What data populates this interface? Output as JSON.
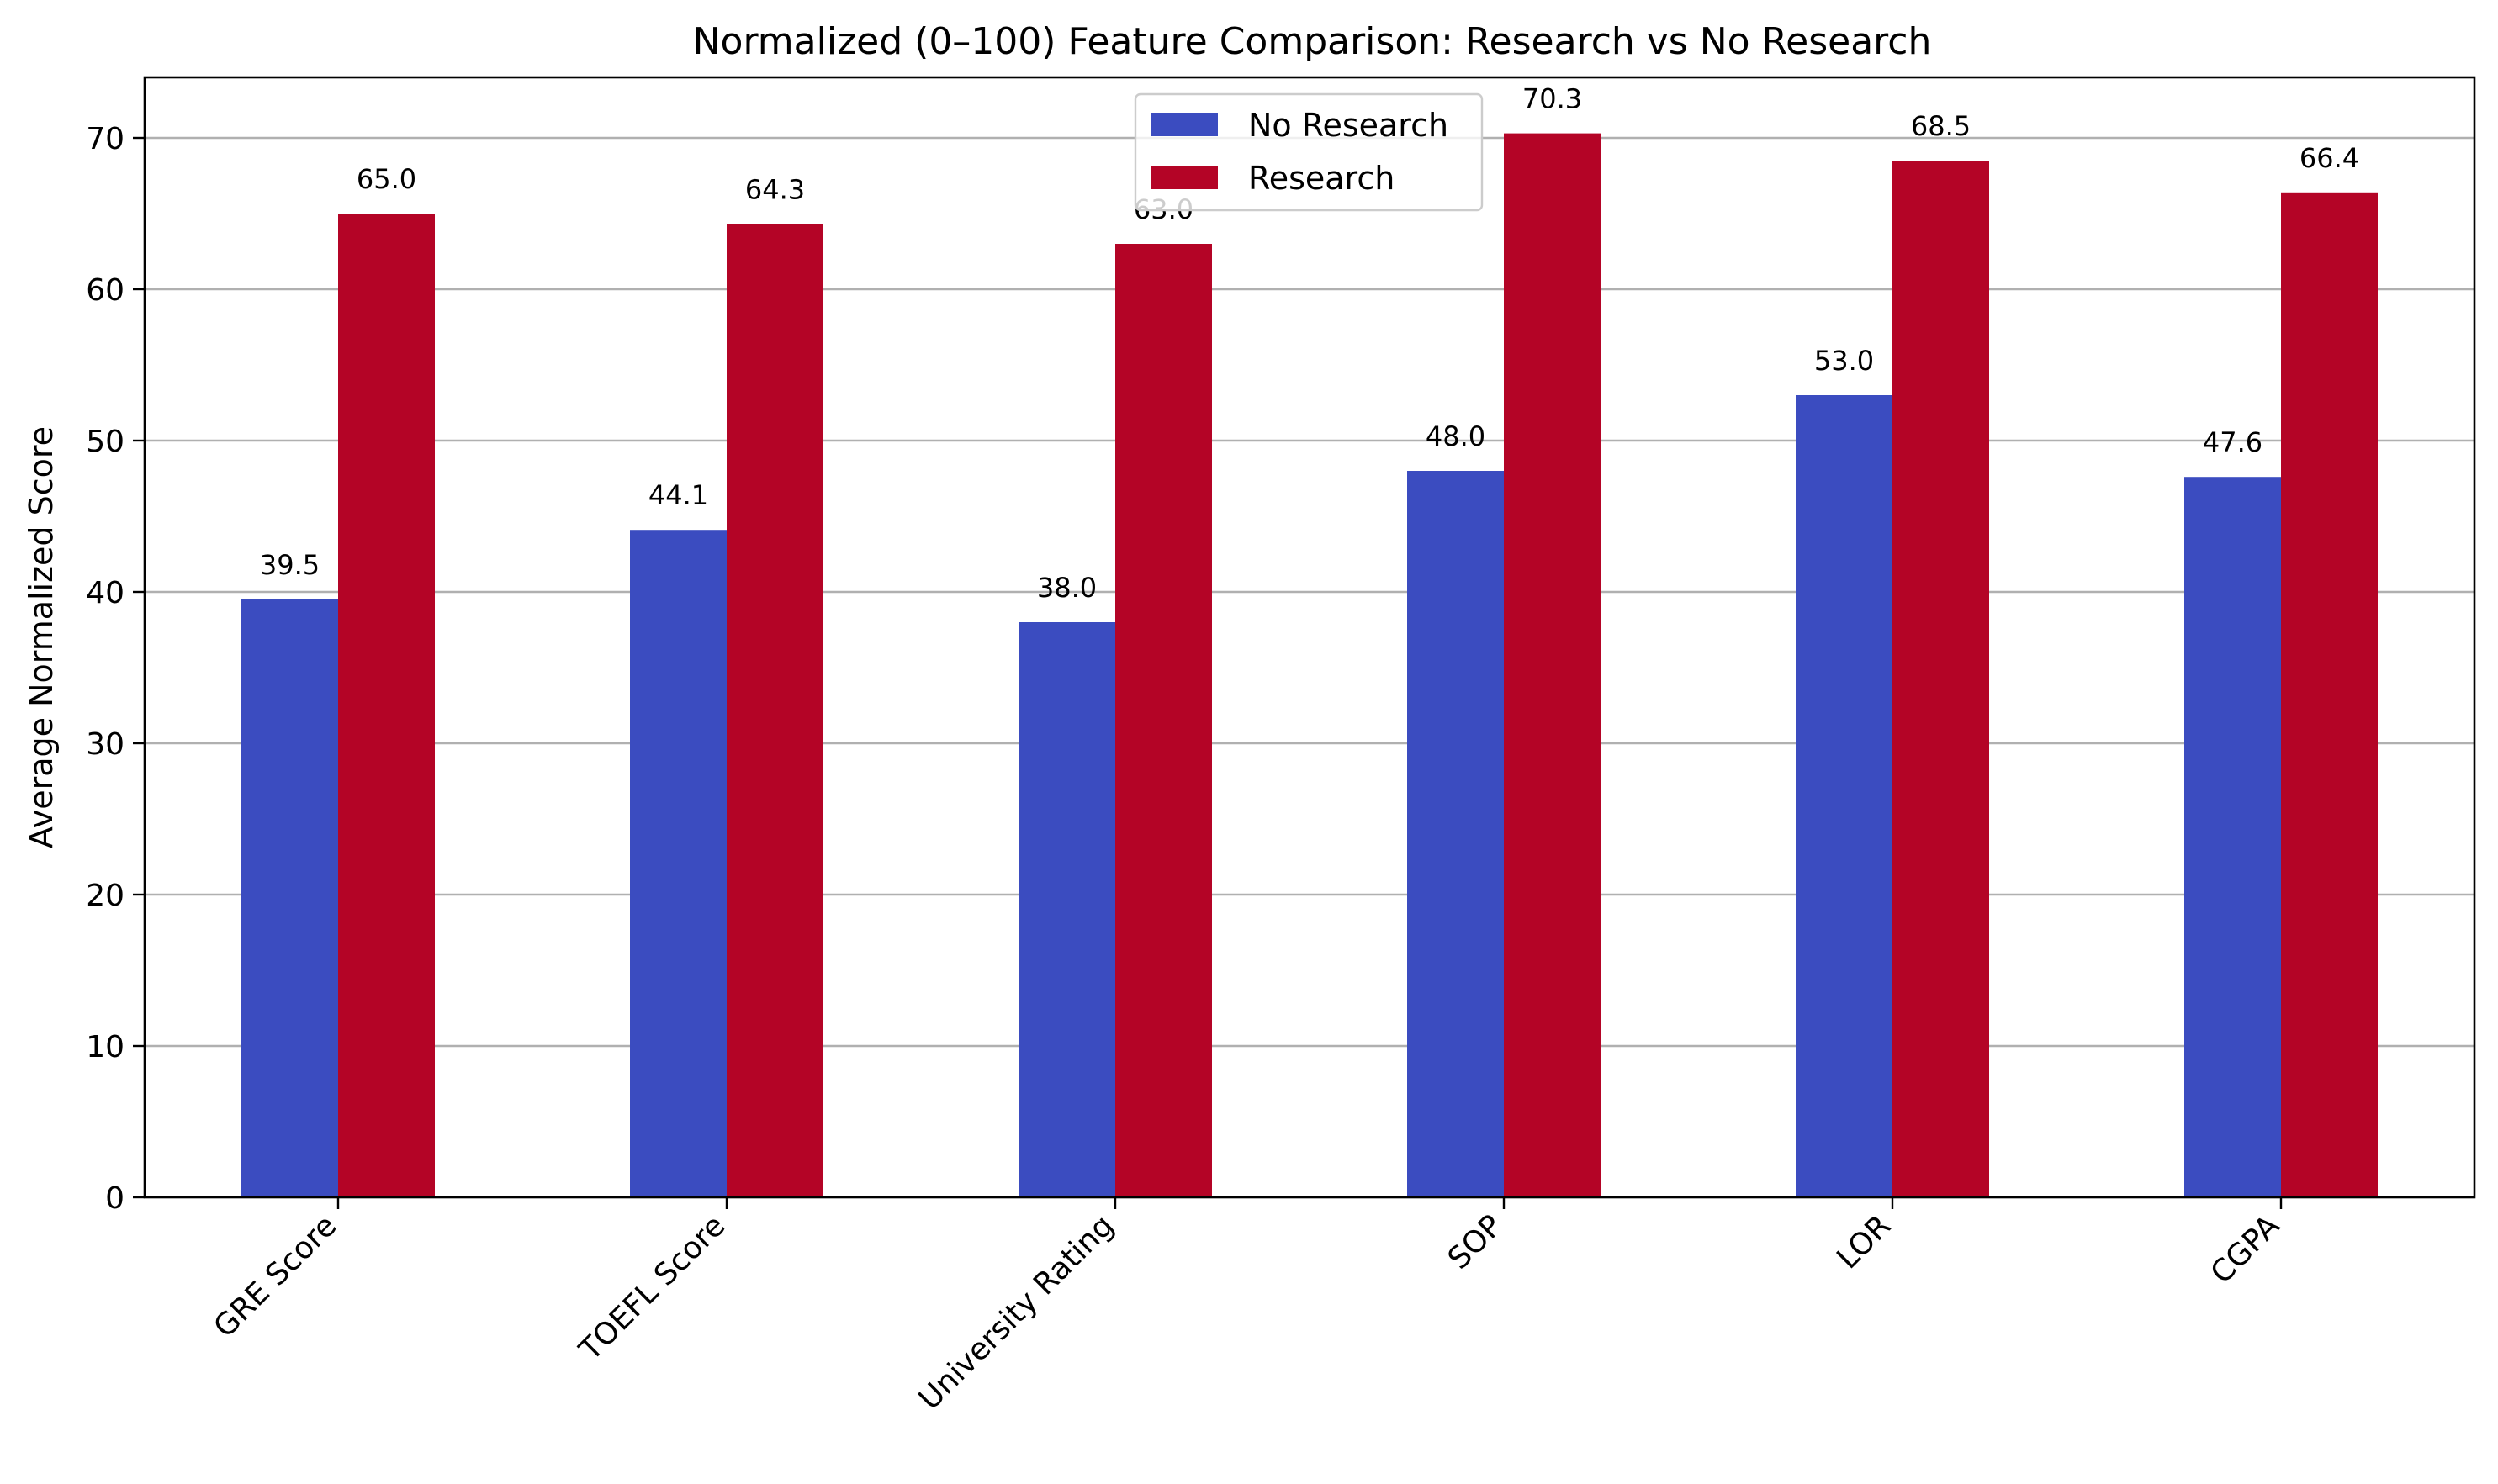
{
  "chart_data": {
    "type": "bar",
    "title": "Normalized (0–100) Feature Comparison: Research vs No Research",
    "xlabel": "",
    "ylabel": "Average Normalized Score",
    "categories": [
      "GRE Score",
      "TOEFL Score",
      "University Rating",
      "SOP",
      "LOR",
      "CGPA"
    ],
    "series": [
      {
        "name": "No Research",
        "color": "#3b4cc0",
        "values": [
          39.5,
          44.1,
          38.0,
          48.0,
          53.0,
          47.6
        ],
        "labels": [
          "39.5",
          "44.1",
          "38.0",
          "48.0",
          "53.0",
          "47.6"
        ]
      },
      {
        "name": "Research",
        "color": "#b40426",
        "values": [
          65.0,
          64.3,
          63.0,
          70.3,
          68.5,
          66.4
        ],
        "labels": [
          "65.0",
          "64.3",
          "63.0",
          "70.3",
          "68.5",
          "66.4"
        ]
      }
    ],
    "ylim": [
      0,
      74
    ],
    "yticks": [
      0,
      10,
      20,
      30,
      40,
      50,
      60,
      70
    ],
    "ytick_labels": [
      "0",
      "10",
      "20",
      "30",
      "40",
      "50",
      "60",
      "70"
    ],
    "grid": "y",
    "legend": "upper center"
  }
}
